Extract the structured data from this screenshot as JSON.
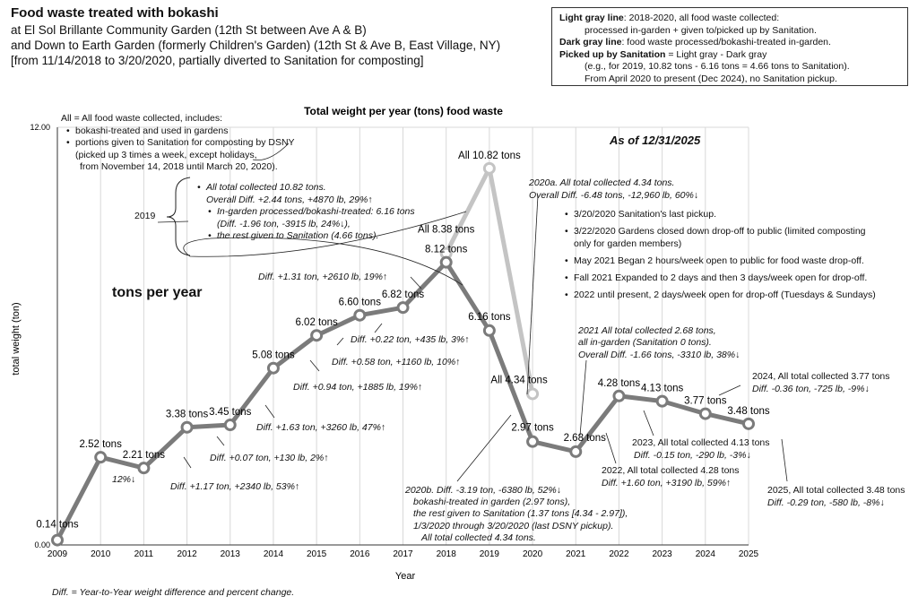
{
  "header": {
    "title": "Food waste treated with bokashi",
    "lines": [
      "at El Sol Brillante Community Garden (12th St between Ave A & B)",
      "and Down to Earth Garden (formerly Children's Garden) (12th St & Ave B, East Village, NY)",
      "[from 11/14/2018 to 3/20/2020, partially diverted to Sanitation for composting]"
    ]
  },
  "legend": {
    "light_label": "Light gray line",
    "light_text": ": 2018-2020, all food waste collected:",
    "light_text2": "processed in-garden + given to/picked up by Sanitation.",
    "dark_label": "Dark gray line",
    "dark_text": ": food waste processed/bokashi-treated in-garden.",
    "pick_label": "Picked up by Sanitation",
    "pick_text": " = Light gray - Dark gray",
    "pick_text2": "(e.g., for 2019, 10.82 tons - 6.16 tons = 4.66 tons to Sanitation).",
    "pick_text3": "From April 2020 to present (Dec 2024), no Sanitation pickup."
  },
  "all_note": {
    "head": "All = All food waste collected, includes:",
    "b1": "bokashi-treated and used in gardens",
    "b2": "portions given to Sanitation for composting by DSNY",
    "b2a": "(picked up 3 times a week, except holidays,",
    "b2b": "from November 14, 2018 until March 20, 2020)."
  },
  "as_of": "As of 12/31/2025",
  "tons_per_year": "tons per year",
  "footnote": "Diff. = Year-to-Year weight difference and percent change.",
  "y2019": {
    "label": "2019",
    "a": "All total collected 10.82 tons.",
    "b": "Overall Diff. +2.44 tons, +4870 lb, 29%↑",
    "c": "In-garden processed/bokashi-treated: 6.16 tons",
    "d": "(Diff. -1.96 ton, -3915 lb, 24%↓),",
    "e": "the rest given to Sanitation (4.66 tons)."
  },
  "y2020a": {
    "a": "2020a. All total collected 4.34 tons.",
    "b": "Overall Diff. -6.48 tons, -12,960 lb, 60%↓",
    "items": [
      "3/20/2020 Sanitation's last pickup.",
      "3/22/2020 Gardens closed down drop-off to public (limited composting",
      "only for garden members)",
      "May 2021 Began 2 hours/week open to public for food waste drop-off.",
      "Fall 2021 Expanded to 2 days and then 3 days/week open for drop-off.",
      "2022 until present, 2 days/week open for drop-off (Tuesdays & Sundays)"
    ]
  },
  "y2020b": {
    "a": "2020b. Diff. -3.19 ton, -6380 lb, 52%↓",
    "b": "bokashi-treated in garden (2.97 tons),",
    "c": "the rest given to Sanitation (1.37 tons [4.34 - 2.97]),",
    "d": "1/3/2020 through 3/20/2020 (last DSNY pickup).",
    "e": "All total collected 4.34 tons."
  },
  "y2021": {
    "a": "2021 All total collected 2.68 tons,",
    "b": "all in-garden (Sanitation 0 tons).",
    "c": "Overall Diff. -1.66 tons, -3310 lb, 38%↓"
  },
  "y2022": {
    "a": "2022, All total collected 4.28 tons",
    "b": "Diff. +1.60 ton, +3190 lb, 59%↑"
  },
  "y2023": {
    "a": "2023, All total collected 4.13 tons",
    "b": "Diff. -0.15 ton, -290 lb, -3%↓"
  },
  "y2024": {
    "a": "2024, All total collected 3.77 tons",
    "b": "Diff. -0.36 ton, -725 lb, -9%↓"
  },
  "y2025": {
    "a": "2025, All total collected 3.48 tons",
    "b": "Diff. -0.29 ton, -580 lb, -8%↓"
  },
  "diffs": {
    "d2011": "12%↓",
    "d2012": "Diff. +1.17 ton, +2340 lb, 53%↑",
    "d2013": "Diff. +0.07 ton, +130 lb, 2%↑",
    "d2014": "Diff. +1.63 ton, +3260 lb, 47%↑",
    "d2015": "Diff. +0.94 ton, +1885 lb, 19%↑",
    "d2016": "Diff. +0.58 ton, +1160 lb, 10%↑",
    "d2017": "Diff. +0.22 ton, +435 lb, 3%↑",
    "d2018": "Diff. +1.31 ton, +2610 lb, 19%↑"
  },
  "chart_data": {
    "type": "line",
    "title": "Total weight per year (tons) food waste",
    "xlabel": "Year",
    "ylabel": "total weight (ton)",
    "x": [
      2009,
      2010,
      2011,
      2012,
      2013,
      2014,
      2015,
      2016,
      2017,
      2018,
      2019,
      2020,
      2021,
      2022,
      2023,
      2024,
      2025
    ],
    "ylim": [
      0,
      12
    ],
    "ytick_labels": [
      "0.00",
      "12.00"
    ],
    "series": [
      {
        "name": "bokashi-treated in-garden (dark gray)",
        "color": "#7b7b7b",
        "values": [
          0.14,
          2.52,
          2.21,
          3.38,
          3.45,
          5.08,
          6.02,
          6.6,
          6.82,
          8.12,
          6.16,
          2.97,
          2.68,
          4.28,
          4.13,
          3.77,
          3.48
        ],
        "labels": [
          "0.14 tons",
          "2.52 tons",
          "2.21 tons",
          "3.38 tons",
          "3.45 tons",
          "5.08 tons",
          "6.02 tons",
          "6.60 tons",
          "6.82 tons",
          "8.12 tons",
          "6.16 tons",
          "2.97 tons",
          "2.68 tons",
          "4.28 tons",
          "4.13 tons",
          "3.77 tons",
          "3.48 tons"
        ]
      },
      {
        "name": "All food waste collected (light gray)",
        "color": "#c4c4c4",
        "x": [
          2018,
          2019,
          2020
        ],
        "values": [
          8.38,
          10.82,
          4.34
        ],
        "labels": [
          "All 8.38 tons",
          "All 10.82 tons",
          "All 4.34 tons"
        ]
      }
    ]
  }
}
